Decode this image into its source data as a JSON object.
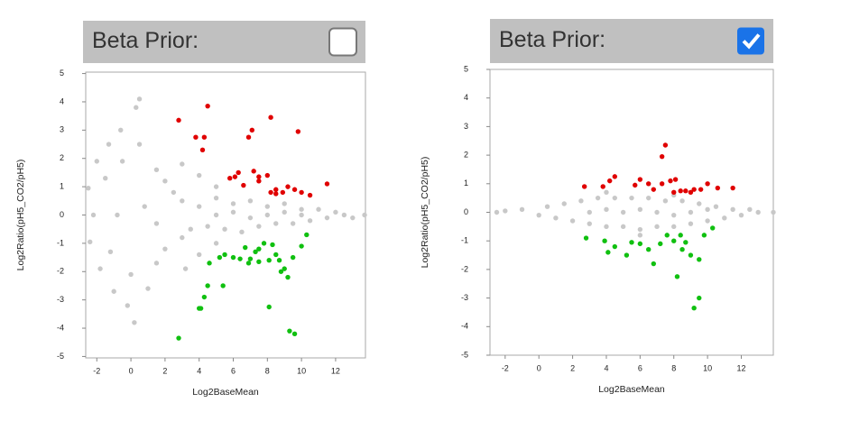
{
  "chart_data": [
    {
      "type": "scatter",
      "title": "Beta Prior:",
      "beta_prior": false,
      "x_label": "Log2BaseMean",
      "y_label": "Log2Ratio(pH5_CO2/pH5)",
      "xlim": [
        -2.65,
        13.75
      ],
      "ylim": [
        -5.05,
        5.05
      ],
      "xticks": [
        -2,
        0,
        2,
        4,
        6,
        8,
        10,
        12
      ],
      "yticks": [
        -5,
        -4,
        -3,
        -2,
        -1,
        0,
        1,
        2,
        3,
        4,
        5
      ],
      "series": [
        {
          "color": "#c8c8c8",
          "x": [
            -2.5,
            -2.4,
            -2,
            -1.8,
            -1.3,
            -1,
            -0.6,
            -0.2,
            0.3,
            0.5,
            0.2,
            -1.5,
            -1.2,
            -0.5,
            0,
            0.5,
            1,
            1.5,
            1.5,
            2,
            2,
            2.5,
            3,
            -2.2,
            -0.8,
            0.8,
            1.5,
            3,
            3.5,
            4,
            4.5,
            5,
            5.5,
            6,
            6.5,
            7,
            7.5,
            8,
            8.5,
            9,
            9.5,
            10,
            10.5,
            11,
            11.5,
            12,
            12.5,
            13,
            13.7,
            5,
            6,
            7,
            8,
            9,
            10,
            4,
            4,
            3,
            3.2,
            5,
            5
          ],
          "values": [
            0.95,
            -0.95,
            1.9,
            -1.9,
            2.5,
            -2.7,
            3.0,
            -3.2,
            3.8,
            4.1,
            -3.8,
            1.3,
            -1.3,
            1.9,
            -2.1,
            2.5,
            -2.6,
            1.6,
            -1.7,
            1.2,
            -1.2,
            0.8,
            -0.8,
            0,
            0,
            0.3,
            -0.3,
            0.5,
            -0.5,
            0.3,
            -0.4,
            0.6,
            -0.5,
            0.4,
            -0.6,
            0.5,
            -0.4,
            0.3,
            -0.3,
            0.4,
            -0.3,
            0.2,
            -0.2,
            0.2,
            -0.1,
            0.1,
            0,
            -0.1,
            0,
            0,
            0.1,
            -0.1,
            0,
            0.1,
            0,
            1.4,
            -1.4,
            1.8,
            -1.9,
            1.0,
            -1.0
          ]
        },
        {
          "color": "#e00000",
          "x": [
            2.8,
            3.8,
            4.3,
            4.5,
            4.2,
            6.9,
            7.1,
            8.2,
            9.8,
            5.8,
            6.1,
            6.3,
            6.6,
            7.2,
            7.5,
            7.5,
            8.0,
            8.2,
            8.5,
            8.9,
            9.2,
            9.6,
            10.0,
            10.5,
            11.5,
            8.5
          ],
          "values": [
            3.35,
            2.75,
            2.75,
            3.85,
            2.3,
            2.75,
            3.0,
            3.45,
            2.95,
            1.3,
            1.35,
            1.5,
            1.05,
            1.55,
            1.35,
            1.2,
            1.4,
            0.8,
            0.9,
            0.8,
            1.0,
            0.9,
            0.8,
            0.7,
            1.1,
            0.75
          ]
        },
        {
          "color": "#10c010",
          "x": [
            2.8,
            4.0,
            4.1,
            4.3,
            4.5,
            4.6,
            5.4,
            5.2,
            5.5,
            6.0,
            6.4,
            6.9,
            7.0,
            7.3,
            7.5,
            7.8,
            8.1,
            8.3,
            8.7,
            8.8,
            9.0,
            9.2,
            9.5,
            10.0,
            10.3,
            8.1,
            9.3,
            9.6,
            7.5,
            6.7,
            8.5
          ],
          "values": [
            -4.35,
            -3.3,
            -3.3,
            -2.9,
            -2.5,
            -1.7,
            -2.5,
            -1.5,
            -1.4,
            -1.5,
            -1.55,
            -1.7,
            -1.55,
            -1.3,
            -1.2,
            -1.0,
            -1.6,
            -1.05,
            -1.6,
            -2.0,
            -1.9,
            -2.2,
            -1.5,
            -1.1,
            -0.7,
            -3.25,
            -4.1,
            -4.2,
            -1.65,
            -1.15,
            -1.4
          ]
        }
      ]
    },
    {
      "type": "scatter",
      "title": "Beta Prior:",
      "beta_prior": true,
      "x_label": "Log2BaseMean",
      "y_label": "Log2Ratio(pH5_CO2/pH5)",
      "xlim": [
        -2.9,
        13.9
      ],
      "ylim": [
        -5.0,
        5.0
      ],
      "xticks": [
        -2,
        0,
        2,
        4,
        6,
        8,
        10,
        12
      ],
      "yticks": [
        -5,
        -4,
        -3,
        -2,
        -1,
        0,
        1,
        2,
        3,
        4,
        5
      ],
      "series": [
        {
          "color": "#c8c8c8",
          "x": [
            -2.5,
            -2,
            -1,
            0,
            0.5,
            1,
            1.5,
            2,
            2.5,
            3,
            3.5,
            4,
            4.5,
            5,
            5.5,
            6,
            6.5,
            7,
            7.5,
            8,
            8.5,
            9,
            9.5,
            10,
            10.5,
            11,
            11.5,
            12,
            12.5,
            13,
            13.9,
            3,
            4,
            5,
            6,
            7,
            8,
            9,
            10,
            4,
            6,
            8
          ],
          "values": [
            0,
            0.05,
            0.1,
            -0.1,
            0.2,
            -0.2,
            0.3,
            -0.3,
            0.4,
            -0.4,
            0.5,
            -0.5,
            0.5,
            -0.5,
            0.5,
            -0.6,
            0.5,
            -0.5,
            0.4,
            -0.5,
            0.4,
            -0.4,
            0.3,
            -0.3,
            0.2,
            -0.2,
            0.1,
            -0.1,
            0.1,
            0,
            0,
            0,
            0.1,
            0,
            0.1,
            0,
            -0.1,
            0,
            0.1,
            0.7,
            -0.8,
            0.6
          ]
        },
        {
          "color": "#e00000",
          "x": [
            2.7,
            3.8,
            4.2,
            4.5,
            5.7,
            6.0,
            6.5,
            6.8,
            7.3,
            7.5,
            7.3,
            7.8,
            8.1,
            8.4,
            8.7,
            9.2,
            9.6,
            10.0,
            10.6,
            11.5,
            8.0,
            9.0
          ],
          "values": [
            0.9,
            0.9,
            1.1,
            1.25,
            0.95,
            1.15,
            1.0,
            0.8,
            1.0,
            2.35,
            1.95,
            1.1,
            1.15,
            0.75,
            0.75,
            0.8,
            0.8,
            1.0,
            0.85,
            0.85,
            0.7,
            0.7
          ]
        },
        {
          "color": "#10c010",
          "x": [
            2.8,
            3.9,
            4.1,
            4.5,
            5.2,
            5.5,
            6.0,
            6.5,
            6.8,
            7.2,
            7.6,
            8.0,
            8.2,
            8.5,
            8.7,
            9.0,
            9.2,
            9.5,
            9.5,
            9.8,
            10.3,
            8.4
          ],
          "values": [
            -0.9,
            -1.0,
            -1.4,
            -1.2,
            -1.5,
            -1.05,
            -1.1,
            -1.3,
            -1.8,
            -1.1,
            -0.8,
            -1.0,
            -2.25,
            -1.3,
            -1.05,
            -1.5,
            -3.35,
            -3.0,
            -1.65,
            -0.8,
            -0.55,
            -0.8
          ]
        }
      ]
    }
  ]
}
